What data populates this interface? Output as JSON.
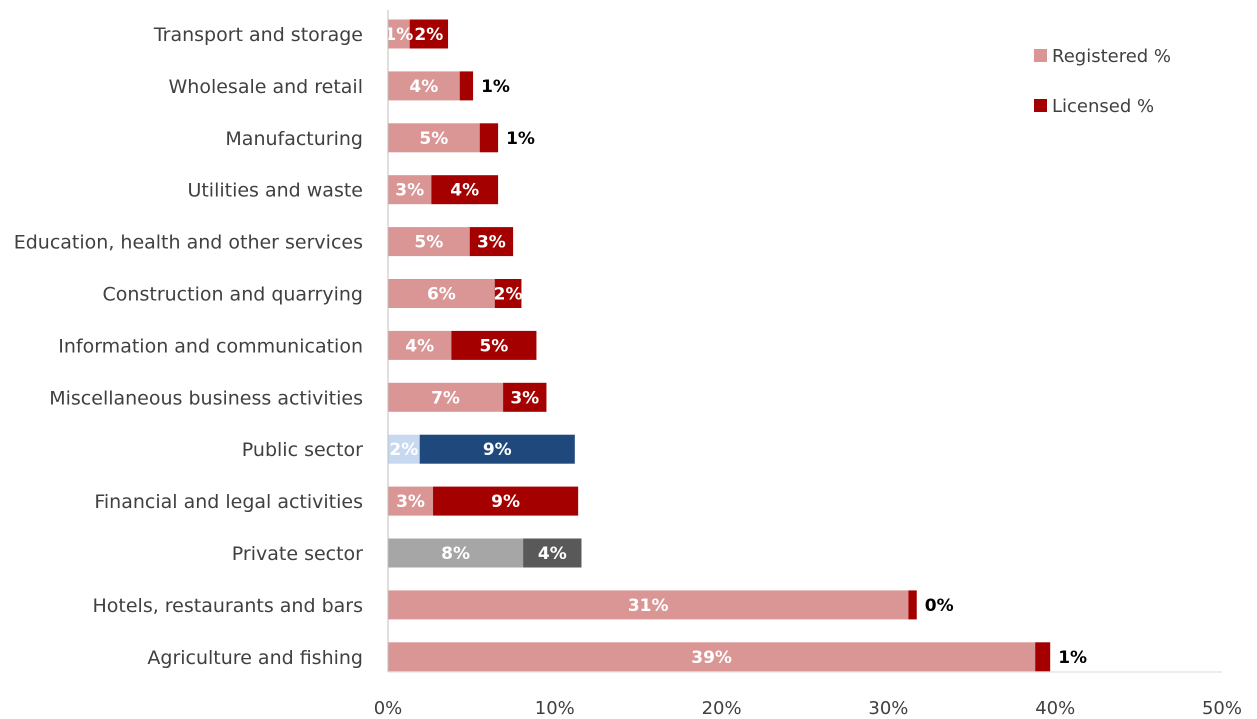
{
  "chart_data": {
    "type": "bar",
    "orientation": "horizontal",
    "stacked": true,
    "title": "",
    "xlabel": "",
    "ylabel": "",
    "xlim": [
      0,
      50
    ],
    "x_ticks": [
      "0%",
      "10%",
      "20%",
      "30%",
      "40%",
      "50%"
    ],
    "grid": false,
    "legend_position": "top-right",
    "categories": [
      "Transport and storage",
      "Wholesale and retail",
      "Manufacturing",
      "Utilities and waste",
      "Education, health and other services",
      "Construction and quarrying",
      "Information and communication",
      "Miscellaneous business activities",
      "Public sector",
      "Financial and legal activities",
      "Private sector",
      "Hotels, restaurants and bars",
      "Agriculture and fishing"
    ],
    "series": [
      {
        "name": "Registered %",
        "color": "#d99694",
        "values": [
          1.3,
          4.3,
          5.5,
          2.6,
          4.9,
          6.4,
          3.8,
          6.9,
          1.9,
          2.7,
          8.1,
          31.2,
          38.8
        ],
        "labels": [
          "1%",
          "4%",
          "5%",
          "3%",
          "5%",
          "6%",
          "4%",
          "7%",
          "2%",
          "3%",
          "8%",
          "31%",
          "39%"
        ]
      },
      {
        "name": "Licensed %",
        "color": "#a50000",
        "values": [
          2.3,
          0.8,
          1.1,
          4.0,
          2.6,
          1.6,
          5.1,
          2.6,
          9.3,
          8.7,
          3.5,
          0.5,
          0.9
        ],
        "labels": [
          "2%",
          "1%",
          "1%",
          "4%",
          "3%",
          "2%",
          "5%",
          "3%",
          "9%",
          "9%",
          "4%",
          "0%",
          "1%"
        ]
      }
    ],
    "highlight_colors": {
      "Public sector": [
        "#c6d9f1",
        "#1f497d"
      ],
      "Private sector": [
        "#a6a6a6",
        "#595959"
      ]
    }
  }
}
